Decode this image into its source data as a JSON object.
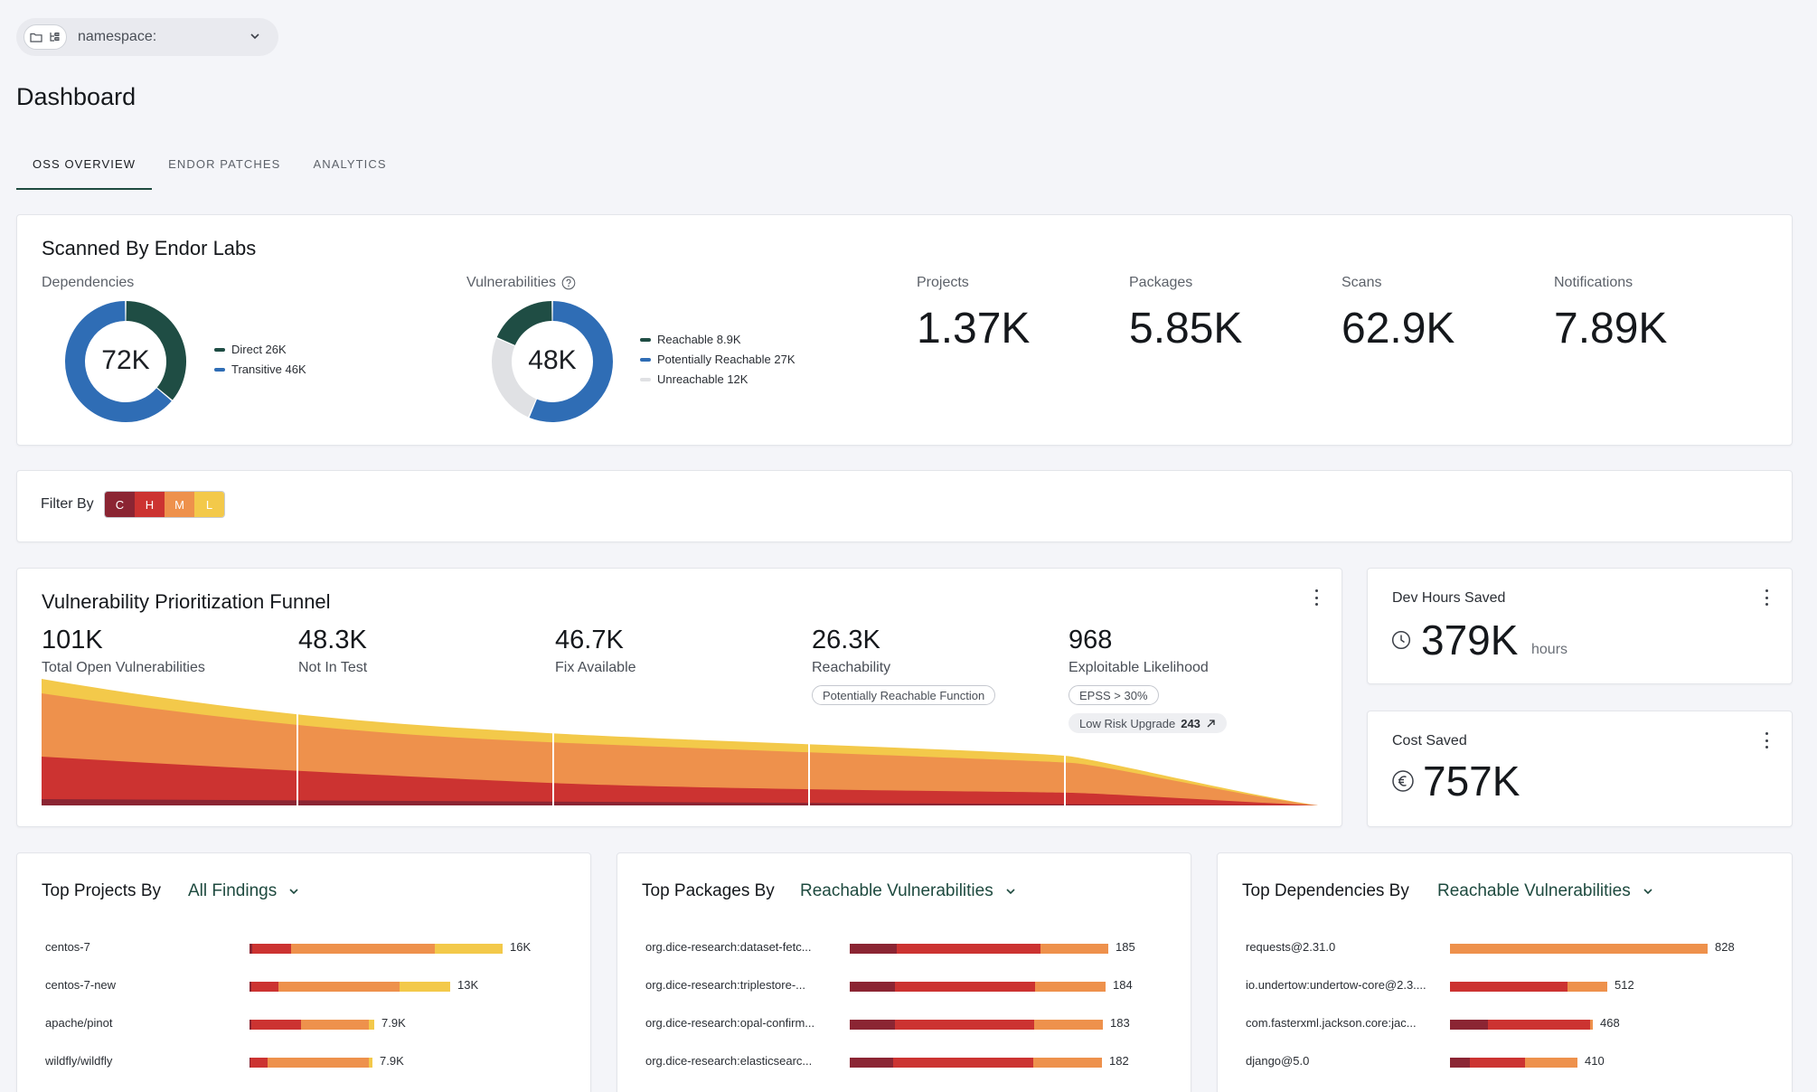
{
  "namespace": {
    "label": "namespace:"
  },
  "page": {
    "title": "Dashboard"
  },
  "tabs": [
    {
      "label": "OSS OVERVIEW",
      "active": true
    },
    {
      "label": "ENDOR PATCHES",
      "active": false
    },
    {
      "label": "ANALYTICS",
      "active": false
    }
  ],
  "scanned": {
    "title": "Scanned By Endor Labs",
    "dependencies": {
      "label": "Dependencies",
      "center": "72K",
      "legend": [
        {
          "label": "Direct 26K",
          "value": 26,
          "color": "#1f4d44"
        },
        {
          "label": "Transitive 46K",
          "value": 46,
          "color": "#2f6db5"
        }
      ]
    },
    "vulnerabilities": {
      "label": "Vulnerabilities",
      "center": "48K",
      "legend": [
        {
          "label": "Reachable 8.9K",
          "value": 8.9,
          "color": "#1f4d44"
        },
        {
          "label": "Potentially Reachable 27K",
          "value": 27,
          "color": "#2f6db5"
        },
        {
          "label": "Unreachable 12K",
          "value": 12,
          "color": "#e0e1e4"
        }
      ]
    },
    "stats": [
      {
        "label": "Projects",
        "value": "1.37K"
      },
      {
        "label": "Packages",
        "value": "5.85K"
      },
      {
        "label": "Scans",
        "value": "62.9K"
      },
      {
        "label": "Notifications",
        "value": "7.89K"
      }
    ]
  },
  "filter": {
    "label": "Filter By",
    "severities": [
      {
        "label": "C",
        "color": "#8b2533"
      },
      {
        "label": "H",
        "color": "#cc3331"
      },
      {
        "label": "M",
        "color": "#ee914c"
      },
      {
        "label": "L",
        "color": "#f3c94a"
      }
    ]
  },
  "funnel": {
    "title": "Vulnerability Prioritization Funnel",
    "stages": [
      {
        "value": "101K",
        "label": "Total Open Vulnerabilities"
      },
      {
        "value": "48.3K",
        "label": "Not In Test"
      },
      {
        "value": "46.7K",
        "label": "Fix Available"
      },
      {
        "value": "26.3K",
        "label": "Reachability",
        "pill": "Potentially Reachable Function"
      },
      {
        "value": "968",
        "label": "Exploitable Likelihood",
        "pill": "EPSS > 30%",
        "pill2_label": "Low Risk Upgrade",
        "pill2_value": "243"
      }
    ]
  },
  "dev_hours": {
    "title": "Dev Hours Saved",
    "value": "379K",
    "unit": "hours"
  },
  "cost_saved": {
    "title": "Cost Saved",
    "value": "757K"
  },
  "top_projects": {
    "title": "Top Projects By",
    "selector": "All Findings",
    "rows": [
      {
        "label": "centos-7",
        "value": "16K",
        "segs": [
          0.3,
          4.3,
          15.9,
          7.5
        ]
      },
      {
        "label": "centos-7-new",
        "value": "13K",
        "segs": [
          0.2,
          3.0,
          13.4,
          5.6
        ]
      },
      {
        "label": "apache/pinot",
        "value": "7.9K",
        "segs": [
          0.2,
          5.5,
          7.5,
          0.6
        ]
      },
      {
        "label": "wildfly/wildfly",
        "value": "7.9K",
        "segs": [
          0.1,
          1.9,
          11.2,
          0.4
        ]
      }
    ]
  },
  "top_packages": {
    "title": "Top Packages By",
    "selector": "Reachable Vulnerabilities",
    "rows": [
      {
        "label": "org.dice-research:dataset-fetc...",
        "value": "185",
        "segs": [
          5.2,
          15.9,
          7.5,
          0
        ]
      },
      {
        "label": "org.dice-research:triplestore-...",
        "value": "184",
        "segs": [
          5.0,
          15.5,
          7.8,
          0
        ]
      },
      {
        "label": "org.dice-research:opal-confirm...",
        "value": "183",
        "segs": [
          5.0,
          15.4,
          7.6,
          0
        ]
      },
      {
        "label": "org.dice-research:elasticsearc...",
        "value": "182",
        "segs": [
          4.8,
          15.5,
          7.6,
          0
        ]
      }
    ]
  },
  "top_dependencies": {
    "title": "Top Dependencies By",
    "selector": "Reachable Vulnerabilities",
    "rows": [
      {
        "label": "requests@2.31.0",
        "value": "828",
        "segs": [
          0,
          0,
          28.5,
          0
        ]
      },
      {
        "label": "io.undertow:undertow-core@2.3....",
        "value": "512",
        "segs": [
          0,
          13.0,
          4.4,
          0
        ]
      },
      {
        "label": "com.fasterxml.jackson.core:jac...",
        "value": "468",
        "segs": [
          4.2,
          11.3,
          0.3,
          0
        ]
      },
      {
        "label": "django@5.0",
        "value": "410",
        "segs": [
          2.2,
          6.1,
          5.8,
          0
        ]
      }
    ]
  },
  "colors": {
    "critical": "#8b2533",
    "high": "#cc3331",
    "medium": "#ee914c",
    "low": "#f3c94a",
    "accent": "#1e4a3f"
  }
}
